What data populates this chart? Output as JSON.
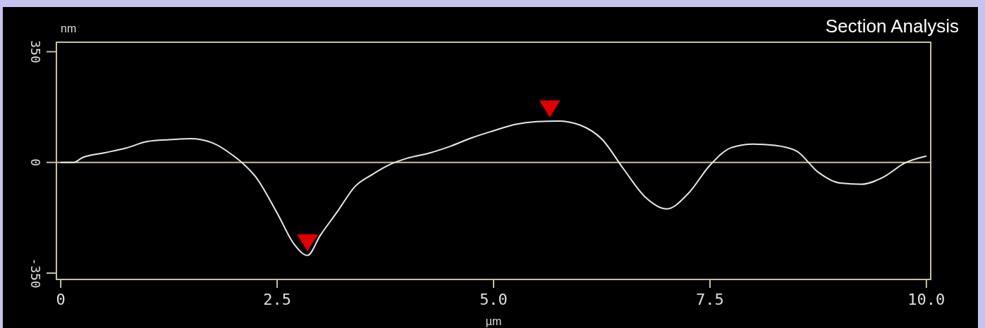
{
  "chart_data": {
    "type": "line",
    "title": "Section Analysis",
    "xlabel": "µm",
    "ylabel": "nm",
    "xlim": [
      -0.05,
      10.05
    ],
    "ylim": [
      -370,
      380
    ],
    "xticks": [
      0,
      2.5,
      {
        "value": 5,
        "label": "5.0"
      },
      7.5,
      {
        "value": 10,
        "label": "10.0"
      }
    ],
    "yticks": [
      -350,
      0,
      350
    ],
    "ref_lines": [
      {
        "axis": "y",
        "value": 0,
        "color": "#c8c09a"
      }
    ],
    "series": [
      {
        "color": "#e8e8e8",
        "marker": "none",
        "x": [
          0,
          0.15,
          0.25,
          0.5,
          0.75,
          1.0,
          1.25,
          1.5,
          1.75,
          2.0,
          2.1,
          2.25,
          2.5,
          2.7,
          2.85,
          3.0,
          3.2,
          3.4,
          3.6,
          3.8,
          4.0,
          4.25,
          4.5,
          4.75,
          5.0,
          5.25,
          5.5,
          5.75,
          6.0,
          6.25,
          6.5,
          6.75,
          7.0,
          7.25,
          7.5,
          7.75,
          8.0,
          8.25,
          8.5,
          8.75,
          9.0,
          9.25,
          9.5,
          9.75,
          10.0
        ],
        "values": [
          0,
          0,
          15,
          30,
          45,
          66,
          72,
          75,
          62,
          20,
          -2,
          -45,
          -160,
          -260,
          -294,
          -230,
          -154,
          -76,
          -38,
          -7,
          13,
          29,
          51,
          78,
          100,
          120,
          129,
          131,
          118,
          74,
          -20,
          -109,
          -147,
          -98,
          -9,
          47,
          58,
          54,
          36,
          -31,
          -65,
          -69,
          -47,
          -2,
          20
        ]
      },
      {
        "type": "scatter",
        "color": "#e00000",
        "marker": "triangle",
        "x": [
          2.85,
          5.65
        ],
        "values": [
          -254,
          169
        ]
      }
    ]
  }
}
